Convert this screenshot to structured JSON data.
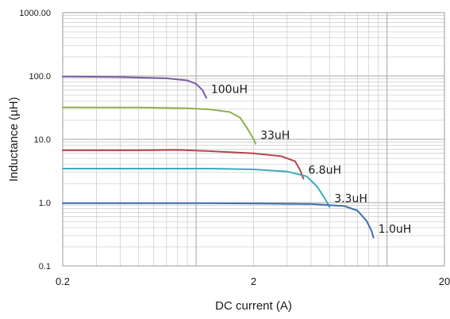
{
  "chart_data": {
    "type": "line",
    "title": "",
    "xlabel": "DC current (A)",
    "ylabel": "Inductance (µH)",
    "xscale": "log",
    "yscale": "log",
    "xlim": [
      0.2,
      20
    ],
    "ylim": [
      0.1,
      1000
    ],
    "x_ticks": [
      {
        "value": 0.2,
        "label": "0.2"
      },
      {
        "value": 2,
        "label": "2"
      },
      {
        "value": 20,
        "label": "20"
      }
    ],
    "y_ticks": [
      {
        "value": 0.1,
        "label": "0.1"
      },
      {
        "value": 1,
        "label": "1.0"
      },
      {
        "value": 10,
        "label": "10.0"
      },
      {
        "value": 100,
        "label": "100.0"
      },
      {
        "value": 1000,
        "label": "1000.00"
      }
    ],
    "grid": true,
    "legend": "inline labels at curve ends",
    "series": [
      {
        "name": "100uH",
        "color": "#7b5aa0",
        "points": [
          [
            0.2,
            98
          ],
          [
            0.4,
            96
          ],
          [
            0.7,
            92
          ],
          [
            0.9,
            85
          ],
          [
            1.0,
            75
          ],
          [
            1.08,
            60
          ],
          [
            1.13,
            45
          ]
        ]
      },
      {
        "name": "33uH",
        "color": "#8fb04f",
        "points": [
          [
            0.2,
            32
          ],
          [
            0.5,
            31.8
          ],
          [
            0.9,
            31
          ],
          [
            1.2,
            29.5
          ],
          [
            1.5,
            27
          ],
          [
            1.7,
            22
          ],
          [
            1.85,
            15
          ],
          [
            2.0,
            10
          ],
          [
            2.05,
            8.5
          ]
        ]
      },
      {
        "name": "6.8uH",
        "color": "#b5464b",
        "points": [
          [
            0.2,
            6.7
          ],
          [
            0.5,
            6.7
          ],
          [
            0.8,
            6.8
          ],
          [
            1.2,
            6.5
          ],
          [
            2.0,
            6.0
          ],
          [
            2.8,
            5.4
          ],
          [
            3.3,
            4.5
          ],
          [
            3.5,
            3.3
          ],
          [
            3.65,
            2.4
          ]
        ]
      },
      {
        "name": "3.3uH",
        "color": "#3fa9bf",
        "points": [
          [
            0.2,
            3.45
          ],
          [
            0.6,
            3.45
          ],
          [
            1.2,
            3.45
          ],
          [
            2.0,
            3.35
          ],
          [
            3.0,
            3.1
          ],
          [
            3.8,
            2.6
          ],
          [
            4.3,
            1.8
          ],
          [
            4.7,
            1.2
          ],
          [
            5.0,
            0.85
          ]
        ]
      },
      {
        "name": "1.0uH",
        "color": "#3d6fb0",
        "points": [
          [
            0.2,
            0.98
          ],
          [
            0.5,
            0.98
          ],
          [
            1.0,
            0.98
          ],
          [
            2.0,
            0.97
          ],
          [
            4.0,
            0.95
          ],
          [
            6.0,
            0.88
          ],
          [
            7.0,
            0.75
          ],
          [
            7.8,
            0.52
          ],
          [
            8.3,
            0.36
          ],
          [
            8.5,
            0.28
          ]
        ]
      }
    ]
  }
}
